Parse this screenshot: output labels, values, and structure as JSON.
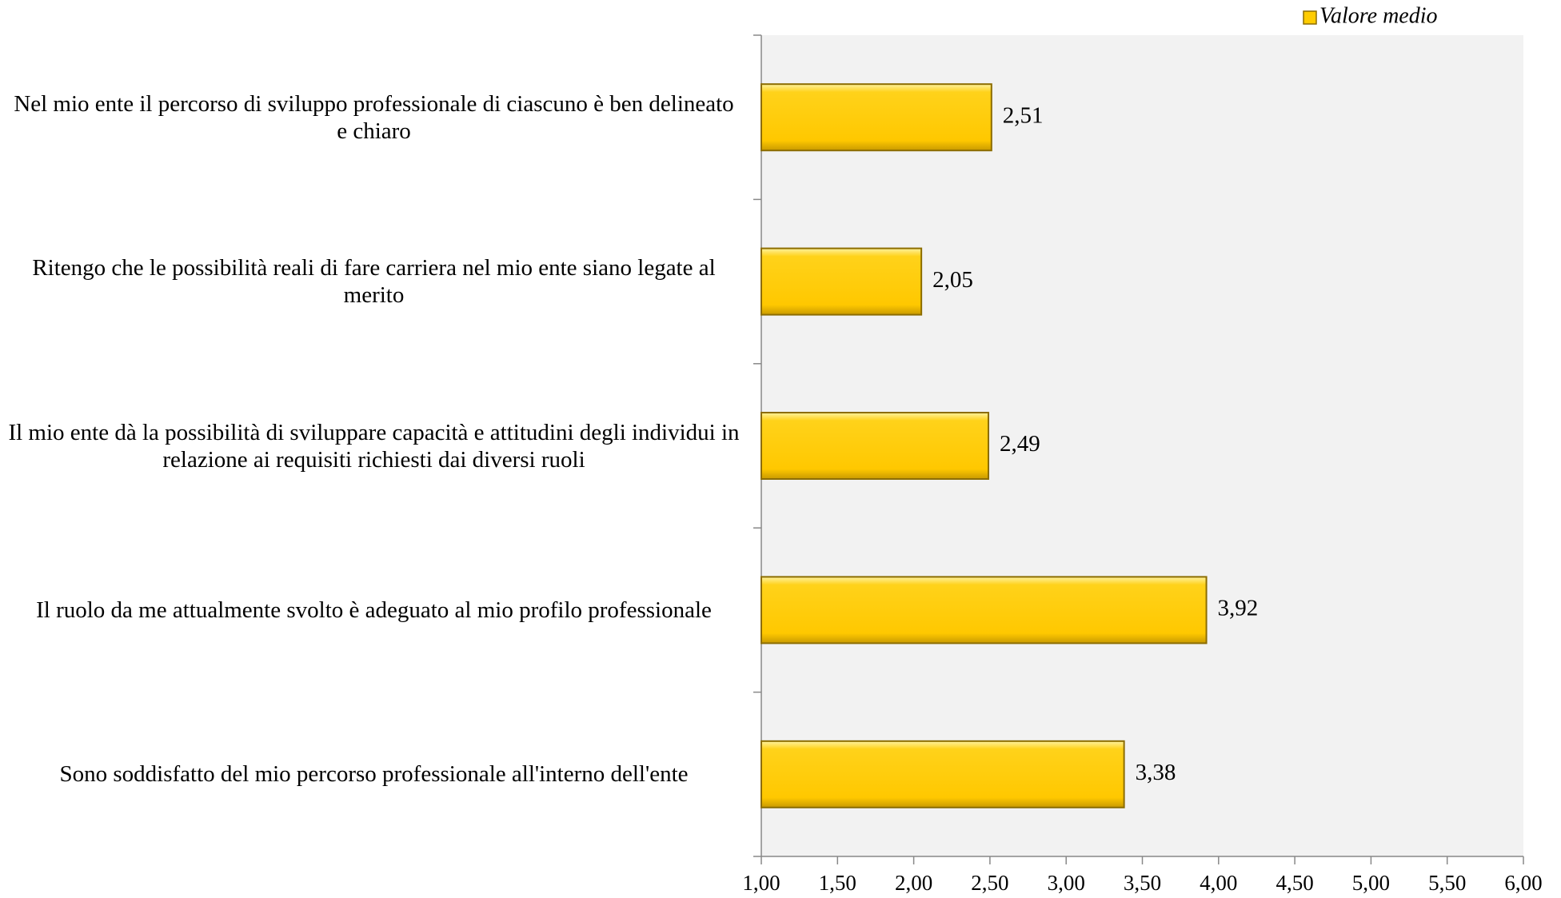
{
  "chart_data": {
    "type": "bar",
    "orientation": "horizontal",
    "categories": [
      "Nel mio ente il percorso di sviluppo professionale di ciascuno è ben delineato e chiaro",
      "Ritengo che le possibilità reali di fare carriera nel mio ente siano legate al merito",
      "Il mio ente dà la possibilità di sviluppare capacità e attitudini degli individui in relazione ai requisiti richiesti dai diversi ruoli",
      "Il ruolo da me attualmente svolto è adeguato al mio profilo professionale",
      "Sono soddisfatto del mio percorso professionale all'interno dell'ente"
    ],
    "series": [
      {
        "name": "Valore medio",
        "color": "#ffcc00",
        "values": [
          2.51,
          2.05,
          2.49,
          3.92,
          3.38
        ],
        "value_labels": [
          "2,51",
          "2,05",
          "2,49",
          "3,92",
          "3,38"
        ]
      }
    ],
    "xlim": [
      1,
      6
    ],
    "xticks": [
      {
        "value": 1,
        "label": "1,00"
      },
      {
        "value": 1.5,
        "label": "1,50"
      },
      {
        "value": 2,
        "label": "2,00"
      },
      {
        "value": 2.5,
        "label": "2,50"
      },
      {
        "value": 3,
        "label": "3,00"
      },
      {
        "value": 3.5,
        "label": "3,50"
      },
      {
        "value": 4,
        "label": "4,00"
      },
      {
        "value": 4.5,
        "label": "4,50"
      },
      {
        "value": 5,
        "label": "5,00"
      },
      {
        "value": 5.5,
        "label": "5,50"
      },
      {
        "value": 6,
        "label": "6,00"
      }
    ],
    "legend": "top-right",
    "grid": false
  }
}
